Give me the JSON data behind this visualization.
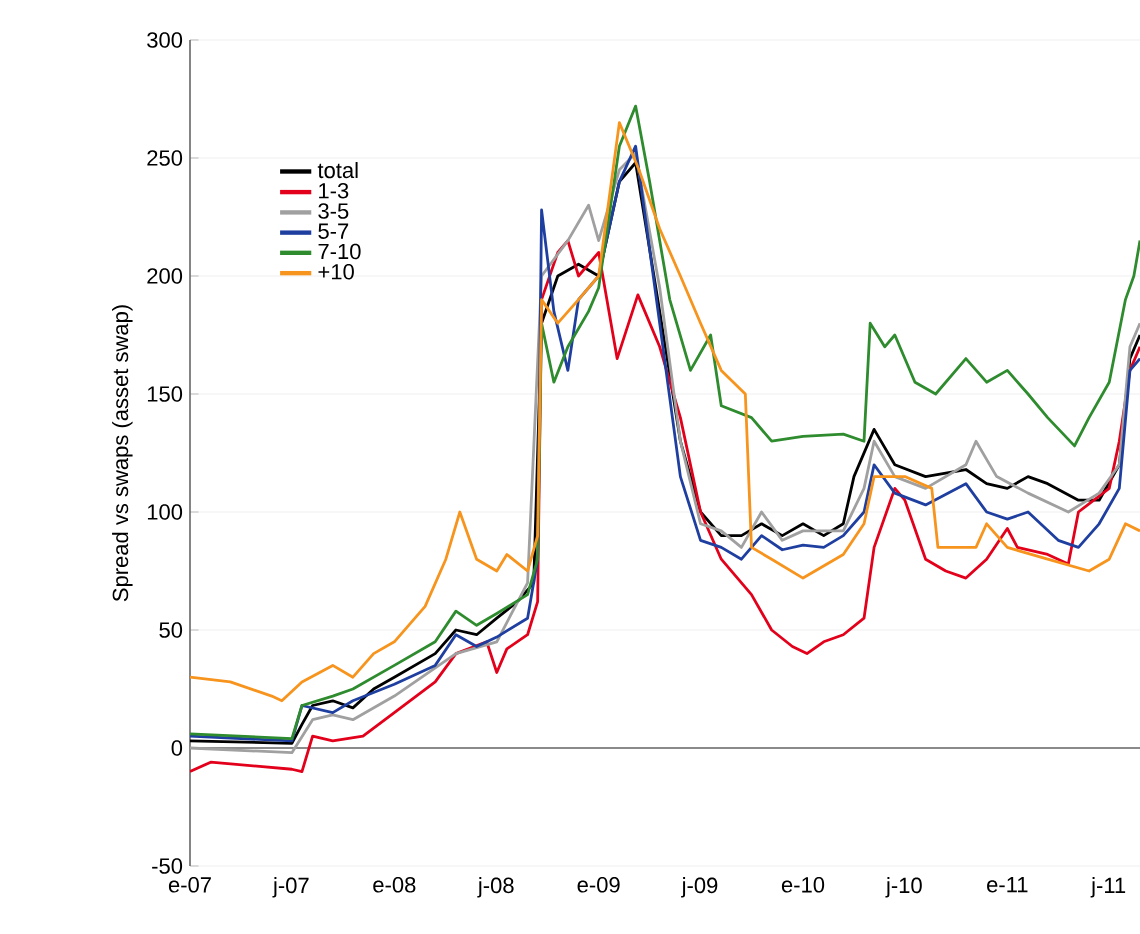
{
  "chart_data": {
    "type": "line",
    "ylabel": "Spread vs swaps (asset swap)",
    "xlim": [
      "2007-01-01",
      "2011-08-26"
    ],
    "ylim": [
      -50,
      300
    ],
    "xticks": [
      {
        "value": "2007-01-01",
        "label": "e-07"
      },
      {
        "value": "2007-07-01",
        "label": "j-07"
      },
      {
        "value": "2008-01-01",
        "label": "e-08"
      },
      {
        "value": "2008-07-01",
        "label": "j-08"
      },
      {
        "value": "2009-01-01",
        "label": "e-09"
      },
      {
        "value": "2009-07-01",
        "label": "j-09"
      },
      {
        "value": "2010-01-01",
        "label": "e-10"
      },
      {
        "value": "2010-07-01",
        "label": "j-10"
      },
      {
        "value": "2011-01-01",
        "label": "e-11"
      },
      {
        "value": "2011-07-01",
        "label": "j-11"
      }
    ],
    "yticks": [
      -50,
      0,
      50,
      100,
      150,
      200,
      250,
      300
    ],
    "grid": "y",
    "legend": "top left",
    "marker": "none",
    "line_style": "solid",
    "series": [
      {
        "name": "total",
        "color": "#000000",
        "x": [
          "2007-01-01",
          "2007-07-02",
          "2007-07-20",
          "2007-08-08",
          "2007-09-13",
          "2007-10-19",
          "2007-11-25",
          "2008-01-01",
          "2008-03-14",
          "2008-04-20",
          "2008-05-27",
          "2008-07-02",
          "2008-08-08",
          "2008-09-06",
          "2008-09-20",
          "2008-10-19",
          "2008-11-25",
          "2009-01-01",
          "2009-02-07",
          "2009-03-08",
          "2009-04-20",
          "2009-05-27",
          "2009-07-02",
          "2009-08-08",
          "2009-09-13",
          "2009-10-19",
          "2009-11-25",
          "2010-01-01",
          "2010-02-07",
          "2010-03-14",
          "2010-04-02",
          "2010-05-08",
          "2010-06-14",
          "2010-08-08",
          "2010-10-19",
          "2010-11-25",
          "2011-01-01",
          "2011-02-07",
          "2011-03-14",
          "2011-05-08",
          "2011-06-14",
          "2011-07-20",
          "2011-08-08",
          "2011-08-26"
        ],
        "values": [
          3,
          2,
          10,
          18,
          20,
          17,
          25,
          30,
          40,
          50,
          48,
          55,
          62,
          70,
          180,
          200,
          205,
          200,
          240,
          248,
          185,
          130,
          100,
          90,
          90,
          95,
          90,
          95,
          90,
          95,
          115,
          135,
          120,
          115,
          118,
          112,
          110,
          115,
          112,
          105,
          105,
          120,
          165,
          175
        ]
      },
      {
        "name": "1-3",
        "color": "#e3001b",
        "x": [
          "2007-01-01",
          "2007-02-07",
          "2007-07-02",
          "2007-07-20",
          "2007-08-08",
          "2007-09-13",
          "2007-11-06",
          "2008-01-01",
          "2008-03-14",
          "2008-04-20",
          "2008-06-14",
          "2008-07-02",
          "2008-07-20",
          "2008-08-26",
          "2008-09-13",
          "2008-09-20",
          "2008-10-19",
          "2008-11-06",
          "2008-11-25",
          "2009-01-01",
          "2009-02-03",
          "2009-03-12",
          "2009-04-20",
          "2009-05-27",
          "2009-07-02",
          "2009-08-08",
          "2009-10-01",
          "2009-11-06",
          "2009-12-13",
          "2010-01-08",
          "2010-02-07",
          "2010-03-14",
          "2010-04-20",
          "2010-05-08",
          "2010-06-14",
          "2010-07-02",
          "2010-08-08",
          "2010-09-13",
          "2010-10-19",
          "2010-11-25",
          "2011-01-01",
          "2011-01-19",
          "2011-03-14",
          "2011-04-20",
          "2011-05-08",
          "2011-07-02",
          "2011-07-20",
          "2011-08-08",
          "2011-08-26"
        ],
        "values": [
          -10,
          -6,
          -9,
          -10,
          5,
          3,
          5,
          15,
          28,
          40,
          45,
          32,
          42,
          48,
          62,
          190,
          210,
          215,
          200,
          210,
          165,
          192,
          170,
          140,
          100,
          80,
          65,
          50,
          43,
          40,
          45,
          48,
          55,
          85,
          110,
          105,
          80,
          75,
          72,
          80,
          93,
          85,
          82,
          78,
          100,
          110,
          130,
          160,
          170
        ]
      },
      {
        "name": "3-5",
        "color": "#a0a0a0",
        "x": [
          "2007-01-01",
          "2007-07-02",
          "2007-08-08",
          "2007-09-13",
          "2007-10-19",
          "2008-01-01",
          "2008-04-20",
          "2008-07-02",
          "2008-08-26",
          "2008-09-20",
          "2008-11-06",
          "2008-12-13",
          "2009-01-01",
          "2009-02-07",
          "2009-03-08",
          "2009-04-20",
          "2009-05-27",
          "2009-07-02",
          "2009-08-08",
          "2009-09-13",
          "2009-10-19",
          "2009-11-25",
          "2010-01-01",
          "2010-03-14",
          "2010-04-20",
          "2010-05-08",
          "2010-06-14",
          "2010-08-08",
          "2010-10-19",
          "2010-11-06",
          "2010-12-13",
          "2011-02-07",
          "2011-04-20",
          "2011-06-14",
          "2011-07-20",
          "2011-08-08",
          "2011-08-26"
        ],
        "values": [
          0,
          -2,
          12,
          14,
          12,
          22,
          40,
          45,
          70,
          200,
          215,
          230,
          215,
          245,
          252,
          195,
          130,
          95,
          92,
          85,
          100,
          88,
          92,
          92,
          110,
          130,
          115,
          110,
          120,
          130,
          115,
          108,
          100,
          108,
          120,
          170,
          180
        ]
      },
      {
        "name": "5-7",
        "color": "#1f3fa0",
        "x": [
          "2007-01-01",
          "2007-07-02",
          "2007-07-20",
          "2007-09-13",
          "2007-10-19",
          "2008-01-01",
          "2008-03-14",
          "2008-04-20",
          "2008-05-27",
          "2008-07-02",
          "2008-08-26",
          "2008-09-13",
          "2008-09-20",
          "2008-10-12",
          "2008-11-06",
          "2008-11-25",
          "2009-01-01",
          "2009-02-07",
          "2009-03-08",
          "2009-04-20",
          "2009-05-27",
          "2009-07-02",
          "2009-08-08",
          "2009-09-13",
          "2009-10-19",
          "2009-11-25",
          "2010-01-01",
          "2010-02-07",
          "2010-03-14",
          "2010-04-20",
          "2010-05-08",
          "2010-06-14",
          "2010-08-08",
          "2010-10-19",
          "2010-11-25",
          "2011-01-01",
          "2011-02-07",
          "2011-04-02",
          "2011-05-08",
          "2011-06-14",
          "2011-07-20",
          "2011-08-08",
          "2011-08-26"
        ],
        "values": [
          5,
          3,
          18,
          15,
          20,
          27,
          35,
          48,
          43,
          47,
          55,
          80,
          228,
          185,
          160,
          190,
          200,
          240,
          255,
          180,
          115,
          88,
          85,
          80,
          90,
          84,
          86,
          85,
          90,
          100,
          120,
          108,
          103,
          112,
          100,
          97,
          100,
          88,
          85,
          95,
          110,
          160,
          165
        ]
      },
      {
        "name": "7-10",
        "color": "#2e8b2e",
        "x": [
          "2007-01-01",
          "2007-07-02",
          "2007-07-20",
          "2007-09-13",
          "2007-10-19",
          "2008-01-01",
          "2008-03-14",
          "2008-04-20",
          "2008-05-27",
          "2008-07-02",
          "2008-08-26",
          "2008-09-13",
          "2008-09-20",
          "2008-10-12",
          "2008-11-06",
          "2008-12-13",
          "2009-01-01",
          "2009-02-07",
          "2009-03-08",
          "2009-04-02",
          "2009-05-08",
          "2009-06-14",
          "2009-07-20",
          "2009-08-08",
          "2009-10-01",
          "2009-11-06",
          "2010-01-01",
          "2010-03-14",
          "2010-04-20",
          "2010-05-01",
          "2010-05-27",
          "2010-06-14",
          "2010-07-20",
          "2010-08-26",
          "2010-10-19",
          "2010-11-25",
          "2011-01-01",
          "2011-02-07",
          "2011-03-14",
          "2011-05-01",
          "2011-05-27",
          "2011-07-02",
          "2011-07-31",
          "2011-08-15",
          "2011-08-26"
        ],
        "values": [
          6,
          4,
          18,
          22,
          25,
          35,
          45,
          58,
          52,
          57,
          65,
          80,
          180,
          155,
          170,
          185,
          195,
          255,
          272,
          240,
          190,
          160,
          175,
          145,
          140,
          130,
          132,
          133,
          130,
          180,
          170,
          175,
          155,
          150,
          165,
          155,
          160,
          150,
          140,
          128,
          140,
          155,
          190,
          200,
          215
        ]
      },
      {
        "name": "+10",
        "color": "#f7941d",
        "x": [
          "2007-01-01",
          "2007-03-14",
          "2007-05-27",
          "2007-06-14",
          "2007-07-20",
          "2007-09-13",
          "2007-10-19",
          "2007-11-25",
          "2008-01-01",
          "2008-02-25",
          "2008-04-02",
          "2008-04-27",
          "2008-05-27",
          "2008-07-02",
          "2008-07-20",
          "2008-08-26",
          "2008-09-13",
          "2008-09-20",
          "2008-10-19",
          "2008-11-25",
          "2009-01-01",
          "2009-02-07",
          "2009-03-14",
          "2009-04-20",
          "2009-05-27",
          "2009-07-02",
          "2009-08-08",
          "2009-09-20",
          "2009-10-01",
          "2009-11-06",
          "2010-01-01",
          "2010-03-14",
          "2010-04-20",
          "2010-05-08",
          "2010-07-02",
          "2010-08-19",
          "2010-08-30",
          "2010-11-06",
          "2010-11-25",
          "2011-01-01",
          "2011-03-14",
          "2011-05-27",
          "2011-07-02",
          "2011-07-31",
          "2011-08-26"
        ],
        "values": [
          30,
          28,
          22,
          20,
          28,
          35,
          30,
          40,
          45,
          60,
          80,
          100,
          80,
          75,
          82,
          75,
          90,
          190,
          180,
          190,
          200,
          265,
          245,
          220,
          200,
          180,
          160,
          150,
          85,
          80,
          72,
          82,
          95,
          115,
          115,
          110,
          85,
          85,
          95,
          85,
          80,
          75,
          80,
          95,
          92
        ]
      }
    ]
  }
}
